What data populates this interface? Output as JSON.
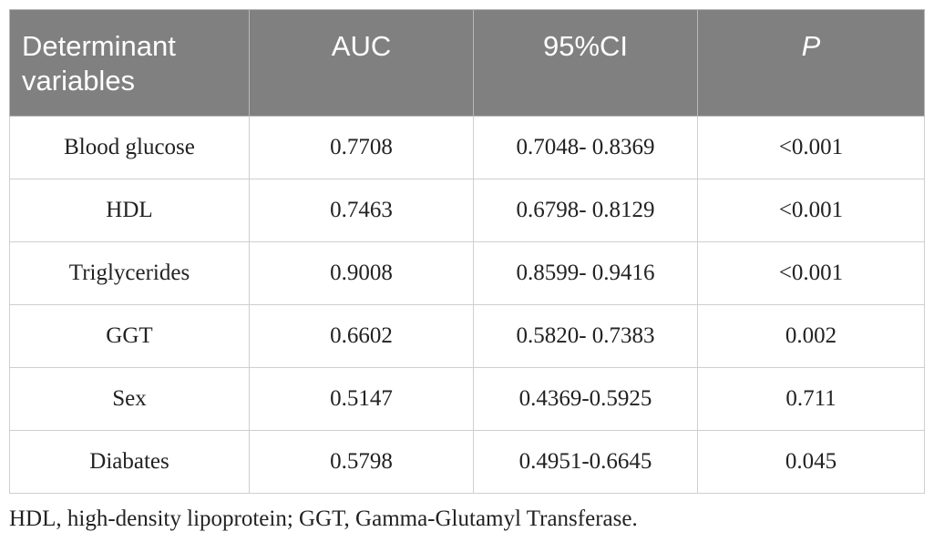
{
  "table": {
    "headers": [
      "Determinant variables",
      "AUC",
      "95%CI",
      "P"
    ],
    "rows": [
      [
        "Blood glucose",
        "0.7708",
        "0.7048- 0.8369",
        "<0.001"
      ],
      [
        "HDL",
        "0.7463",
        "0.6798- 0.8129",
        "<0.001"
      ],
      [
        "Triglycerides",
        "0.9008",
        "0.8599- 0.9416",
        "<0.001"
      ],
      [
        "GGT",
        "0.6602",
        "0.5820- 0.7383",
        "0.002"
      ],
      [
        "Sex",
        "0.5147",
        "0.4369-0.5925",
        "0.711"
      ],
      [
        "Diabates",
        "0.5798",
        "0.4951-0.6645",
        "0.045"
      ]
    ]
  },
  "footnote": "HDL, high-density lipoprotein; GGT, Gamma-Glutamyl Transferase.",
  "colors": {
    "header_bg": "#808080",
    "header_text": "#ffffff",
    "body_text": "#222222",
    "grid": "#cfcfcf"
  }
}
